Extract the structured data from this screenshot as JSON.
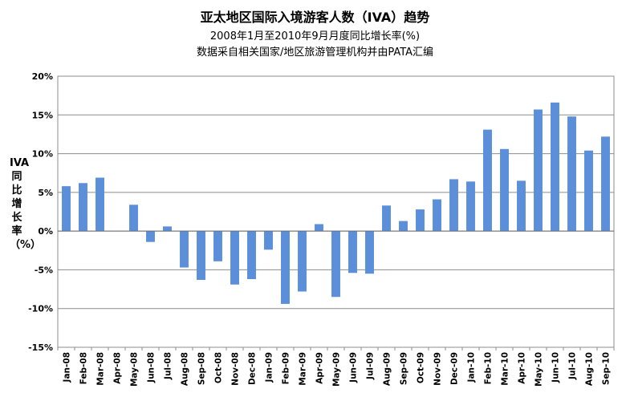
{
  "chart_data": {
    "type": "bar",
    "title": "亚太地区国际入境游客人数（IVA）趋势",
    "subtitle_lines": [
      "2008年1月至2010年9月月度同比增长率(%)",
      "数据采自相关国家/地区旅游管理机构并由PATA汇编"
    ],
    "ylabel": "IVA同比增长率（%）",
    "xlabel": "",
    "ylim": [
      -15,
      20
    ],
    "yticks": [
      -15,
      -10,
      -5,
      0,
      5,
      10,
      15,
      20
    ],
    "ytick_labels": [
      "-15%",
      "-10%",
      "-5%",
      "0%",
      "5%",
      "10%",
      "15%",
      "20%"
    ],
    "grid": true,
    "legend": "none",
    "bar_color": "#5b8fd9",
    "categories": [
      "Jan-08",
      "Feb-08",
      "Mar-08",
      "Apr-08",
      "May-08",
      "Jun-08",
      "Jul-08",
      "Aug-08",
      "Sep-08",
      "Oct-08",
      "Nov-08",
      "Dec-08",
      "Jan-09",
      "Feb-09",
      "Mar-09",
      "Apr-09",
      "May-09",
      "Jun-09",
      "Jul-09",
      "Aug-09",
      "Sep-09",
      "Oct-09",
      "Nov-09",
      "Dec-09",
      "Jan-10",
      "Feb-10",
      "Mar-10",
      "Apr-10",
      "May-10",
      "Jun-10",
      "Jul-10",
      "Aug-10",
      "Sep-10"
    ],
    "values": [
      5.8,
      6.2,
      6.9,
      null,
      3.4,
      -1.4,
      0.6,
      -4.7,
      -6.3,
      -3.9,
      -6.9,
      -6.2,
      -2.4,
      -9.4,
      -7.8,
      0.9,
      -8.5,
      -5.4,
      -5.5,
      3.3,
      1.3,
      2.8,
      4.1,
      6.7,
      6.4,
      13.1,
      10.6,
      6.5,
      15.7,
      16.6,
      14.8,
      10.4,
      12.2
    ]
  }
}
